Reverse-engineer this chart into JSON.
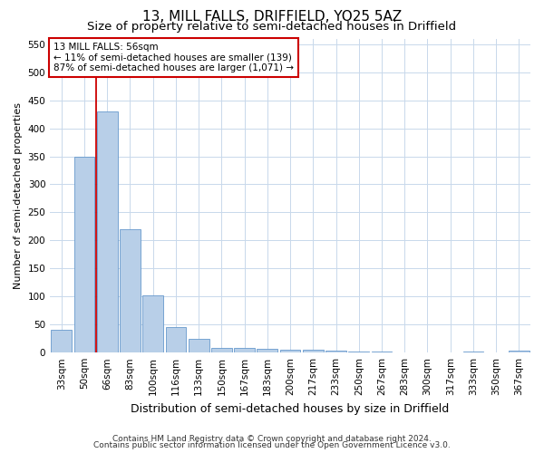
{
  "title": "13, MILL FALLS, DRIFFIELD, YO25 5AZ",
  "subtitle": "Size of property relative to semi-detached houses in Driffield",
  "xlabel": "Distribution of semi-detached houses by size in Driffield",
  "ylabel": "Number of semi-detached properties",
  "footer_line1": "Contains HM Land Registry data © Crown copyright and database right 2024.",
  "footer_line2": "Contains public sector information licensed under the Open Government Licence v3.0.",
  "categories": [
    "33sqm",
    "50sqm",
    "66sqm",
    "83sqm",
    "100sqm",
    "116sqm",
    "133sqm",
    "150sqm",
    "167sqm",
    "183sqm",
    "200sqm",
    "217sqm",
    "233sqm",
    "250sqm",
    "267sqm",
    "283sqm",
    "300sqm",
    "317sqm",
    "333sqm",
    "350sqm",
    "367sqm"
  ],
  "values": [
    40,
    350,
    430,
    220,
    102,
    45,
    25,
    9,
    9,
    6,
    5,
    5,
    3,
    2,
    2,
    1,
    1,
    0,
    2,
    0,
    3
  ],
  "bar_color": "#b8cfe8",
  "bar_edge_color": "#6699cc",
  "property_line_x": 1.5,
  "property_line_color": "#cc0000",
  "annotation_text": "13 MILL FALLS: 56sqm\n← 11% of semi-detached houses are smaller (139)\n87% of semi-detached houses are larger (1,071) →",
  "annotation_box_color": "#ffffff",
  "annotation_box_edge": "#cc0000",
  "ylim": [
    0,
    560
  ],
  "yticks": [
    0,
    50,
    100,
    150,
    200,
    250,
    300,
    350,
    400,
    450,
    500,
    550
  ],
  "background_color": "#ffffff",
  "grid_color": "#c8d8eb",
  "title_fontsize": 11,
  "subtitle_fontsize": 9.5,
  "xlabel_fontsize": 9,
  "ylabel_fontsize": 8,
  "tick_fontsize": 7.5,
  "footer_fontsize": 6.5,
  "annotation_fontsize": 7.5
}
